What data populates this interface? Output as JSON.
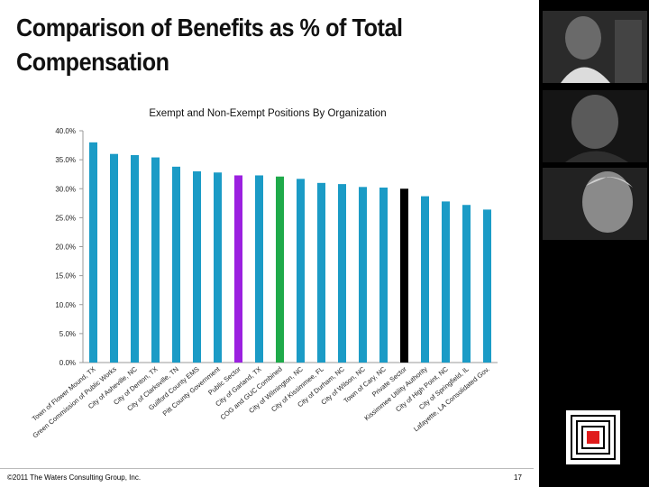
{
  "slide": {
    "title_line1": "Comparison of  Benefits as % of Total",
    "title_line2": "Compensation",
    "footer": "©2011 The Waters Consulting Group, Inc.",
    "page_number": "17"
  },
  "colors": {
    "default_bar": "#1b9bc6",
    "highlight_purple": "#9b20e0",
    "highlight_green": "#1faa4a",
    "highlight_black": "#000000",
    "panel": "#000000"
  },
  "chart_data": {
    "type": "bar",
    "title": "Exempt and Non-Exempt Positions By Organization",
    "xlabel": "",
    "ylabel": "",
    "ylim": [
      0,
      40
    ],
    "yticks": [
      "0.0%",
      "5.0%",
      "10.0%",
      "15.0%",
      "20.0%",
      "25.0%",
      "30.0%",
      "35.0%",
      "40.0%"
    ],
    "categories": [
      "Town of Flower Mound, TX",
      "Green Commission of Public Works",
      "City of Asheville, NC",
      "City of Denton, TX",
      "City of Clarksville, TN",
      "Guilford County EMS",
      "Pitt County Government",
      "Public Sector",
      "City of Garland, TX",
      "COG and GUC Combined",
      "City of Wilmington, NC",
      "City of Kissimmee, FL",
      "City of Durham, NC",
      "City of Wilson, NC",
      "Town of Cary, NC",
      "Private Sector",
      "Kissimmee Utility Authority",
      "City of High Point, NC",
      "City of Springfield, IL",
      "Lafayette, LA Consolidated Gov."
    ],
    "values": [
      38.0,
      36.0,
      35.8,
      35.4,
      33.8,
      33.0,
      32.8,
      32.3,
      32.3,
      32.1,
      31.7,
      31.0,
      30.8,
      30.3,
      30.2,
      30.0,
      28.7,
      27.8,
      27.2,
      26.4
    ],
    "highlights": {
      "Public Sector": "purple",
      "COG and GUC Combined": "green",
      "Private Sector": "black"
    },
    "grid": false,
    "legend": "none"
  }
}
